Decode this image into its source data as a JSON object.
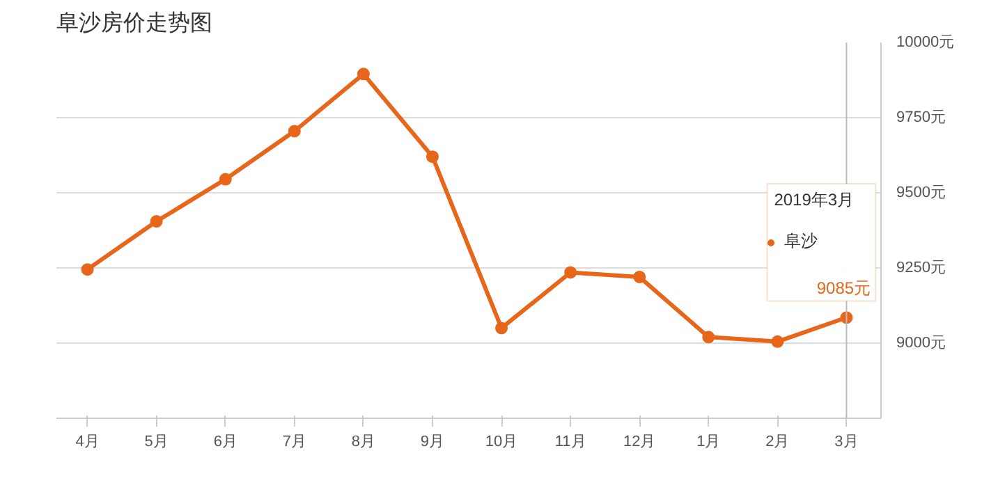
{
  "chart_data": {
    "type": "line",
    "title": "阜沙房价走势图",
    "categories": [
      "4月",
      "5月",
      "6月",
      "7月",
      "8月",
      "9月",
      "10月",
      "11月",
      "12月",
      "1月",
      "2月",
      "3月"
    ],
    "series": [
      {
        "name": "阜沙",
        "color": "#e8661a",
        "values": [
          9245,
          9405,
          9545,
          9705,
          9895,
          9620,
          9050,
          9235,
          9220,
          9020,
          9005,
          9085
        ],
        "value_labels": [
          null,
          null,
          null,
          null,
          null,
          null,
          null,
          null,
          null,
          null,
          null,
          "9085元"
        ]
      }
    ],
    "ylim": [
      8750,
      10000
    ],
    "yticks": [
      {
        "value": 9000,
        "label": "9000元"
      },
      {
        "value": 9250,
        "label": "9250元"
      },
      {
        "value": 9500,
        "label": "9500元"
      },
      {
        "value": 9750,
        "label": "9750元"
      },
      {
        "value": 10000,
        "label": "10000元"
      }
    ],
    "annotations": [
      "2019年3月"
    ],
    "ref_lines": [
      {
        "axis": "x",
        "value": "3月",
        "color": "#bbbbbb"
      }
    ],
    "grid": "y",
    "legend": "right",
    "marker": "circle",
    "line_style": "solid"
  }
}
